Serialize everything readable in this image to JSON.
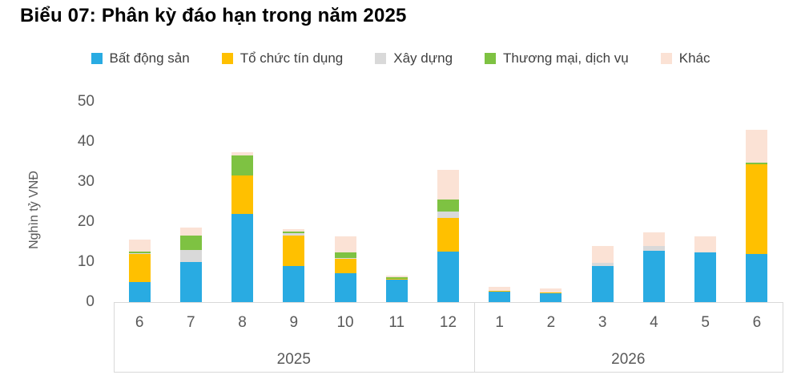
{
  "chart_data": {
    "type": "stacked-bar",
    "title": "Biểu 07: Phân kỳ đáo hạn trong năm 2025",
    "ylabel": "Nghìn tỷ VNĐ",
    "ylim": [
      0,
      50
    ],
    "yticks": [
      0,
      10,
      20,
      30,
      40,
      50
    ],
    "grid": false,
    "legend_position": "top",
    "background": "#ffffff",
    "axis_line_color": "#d9d9d9",
    "tick_text_color": "#595959",
    "legend_text_color": "#404040",
    "title_color": "#000000",
    "groups": [
      {
        "year": "2025",
        "months": [
          "6",
          "7",
          "8",
          "9",
          "10",
          "11",
          "12"
        ]
      },
      {
        "year": "2026",
        "months": [
          "1",
          "2",
          "3",
          "4",
          "5",
          "6"
        ]
      }
    ],
    "series": [
      {
        "name": "Bất động sản",
        "color": "#29ABE2",
        "values": [
          5.0,
          10.0,
          22.0,
          9.0,
          7.2,
          5.5,
          12.5,
          2.6,
          2.2,
          9.0,
          12.7,
          12.4,
          12.0
        ]
      },
      {
        "name": "Tổ chức tín dụng",
        "color": "#FFC000",
        "values": [
          7.0,
          0.0,
          9.5,
          7.5,
          3.5,
          0.3,
          8.5,
          0.2,
          0.2,
          0.0,
          0.0,
          0.0,
          22.3
        ]
      },
      {
        "name": "Xây dựng",
        "color": "#D9D9D9",
        "values": [
          0.2,
          3.0,
          0.0,
          0.7,
          0.2,
          0.0,
          1.5,
          0.0,
          0.0,
          0.8,
          1.2,
          0.0,
          0.0
        ]
      },
      {
        "name": "Thương mại, dịch vụ",
        "color": "#7EC242",
        "values": [
          0.4,
          3.5,
          5.0,
          0.3,
          1.5,
          0.3,
          3.0,
          0.0,
          0.0,
          0.0,
          0.0,
          0.0,
          0.4
        ]
      },
      {
        "name": "Khác",
        "color": "#FBE2D5",
        "values": [
          3.0,
          2.0,
          0.8,
          0.7,
          4.0,
          0.4,
          7.5,
          1.0,
          0.9,
          4.2,
          3.5,
          4.0,
          8.3
        ]
      }
    ]
  }
}
